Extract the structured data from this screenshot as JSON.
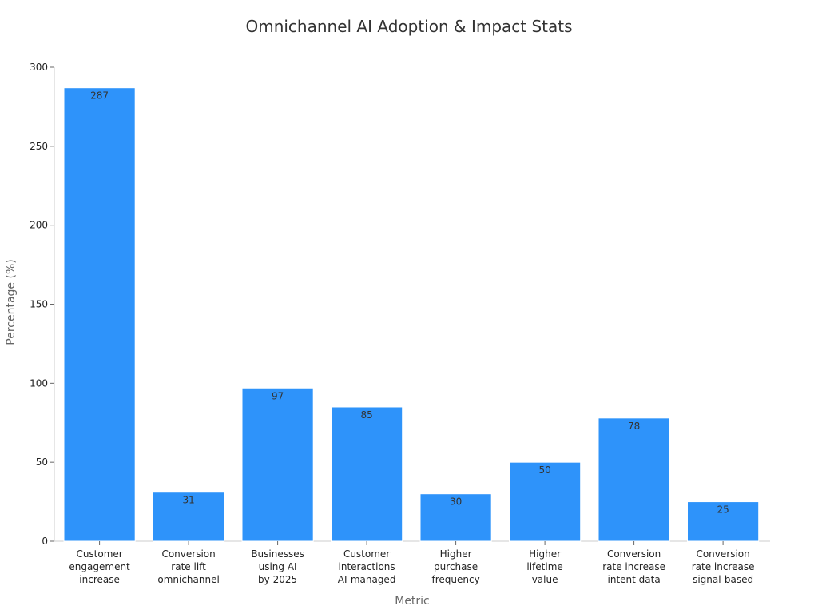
{
  "chart_data": {
    "type": "bar",
    "title": "Omnichannel AI Adoption & Impact Stats",
    "xlabel": "Metric",
    "ylabel": "Percentage (%)",
    "ylim": [
      0,
      300
    ],
    "yticks": [
      0,
      50,
      100,
      150,
      200,
      250,
      300
    ],
    "grid": false,
    "bar_color": "#2e93fa",
    "categories": [
      [
        "Customer",
        "engagement",
        "increase"
      ],
      [
        "Conversion",
        "rate lift",
        "omnichannel"
      ],
      [
        "Businesses",
        "using AI",
        "by 2025"
      ],
      [
        "Customer",
        "interactions",
        "AI-managed"
      ],
      [
        "Higher",
        "purchase",
        "frequency"
      ],
      [
        "Higher",
        "lifetime",
        "value"
      ],
      [
        "Conversion",
        "rate increase",
        "intent data"
      ],
      [
        "Conversion",
        "rate increase",
        "signal-based"
      ]
    ],
    "values": [
      287,
      31,
      97,
      85,
      30,
      50,
      78,
      25
    ]
  }
}
